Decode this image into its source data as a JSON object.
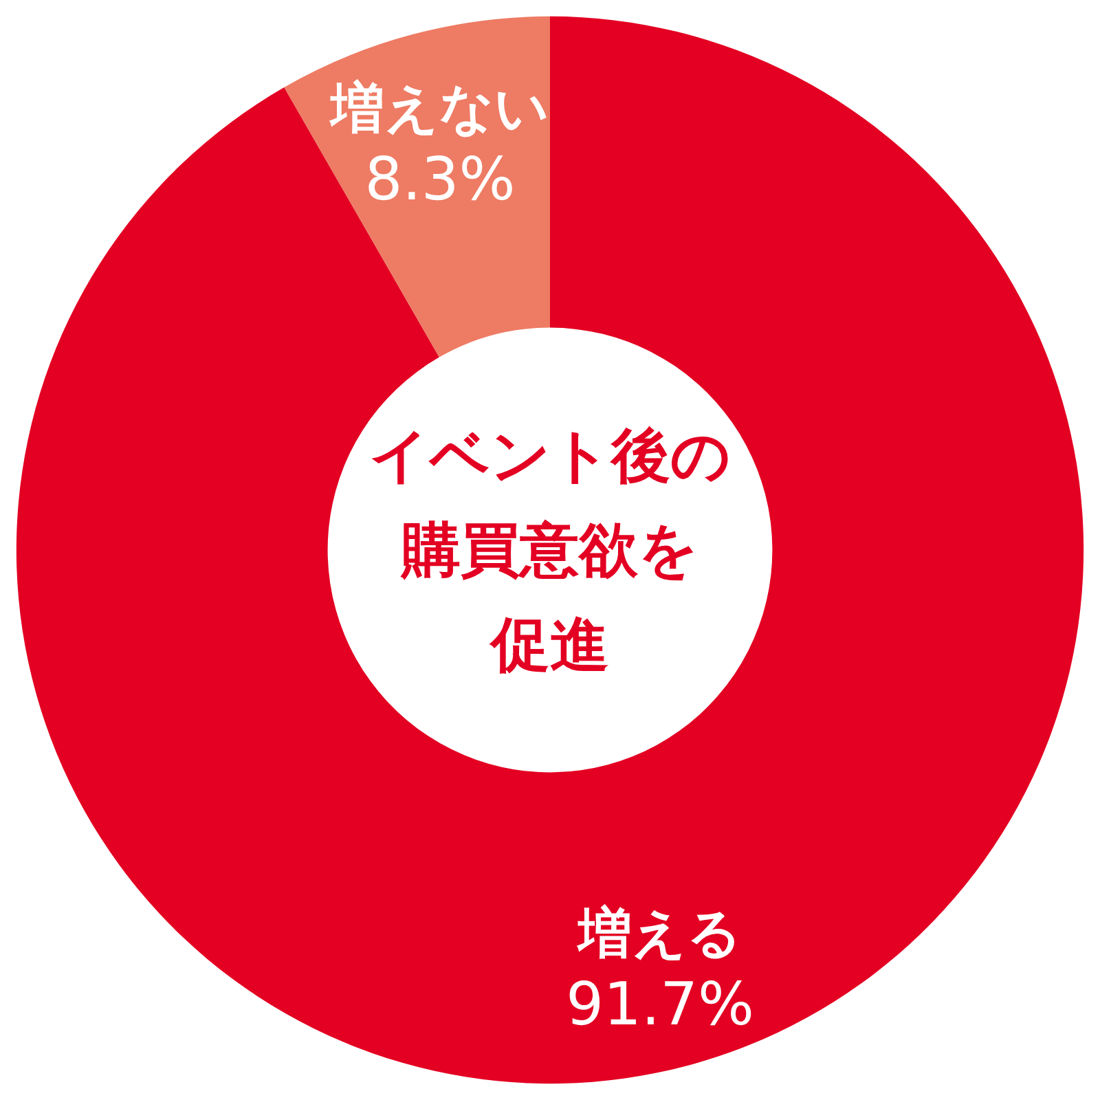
{
  "chart_data": {
    "type": "donut",
    "title": "イベント後の購買意欲を促進",
    "categories": [
      "増える",
      "増えない"
    ],
    "values": [
      91.7,
      8.3
    ],
    "colors": [
      "#e30022",
      "#ee7b63"
    ],
    "value_labels": [
      "91.7%",
      "8.3%"
    ]
  }
}
